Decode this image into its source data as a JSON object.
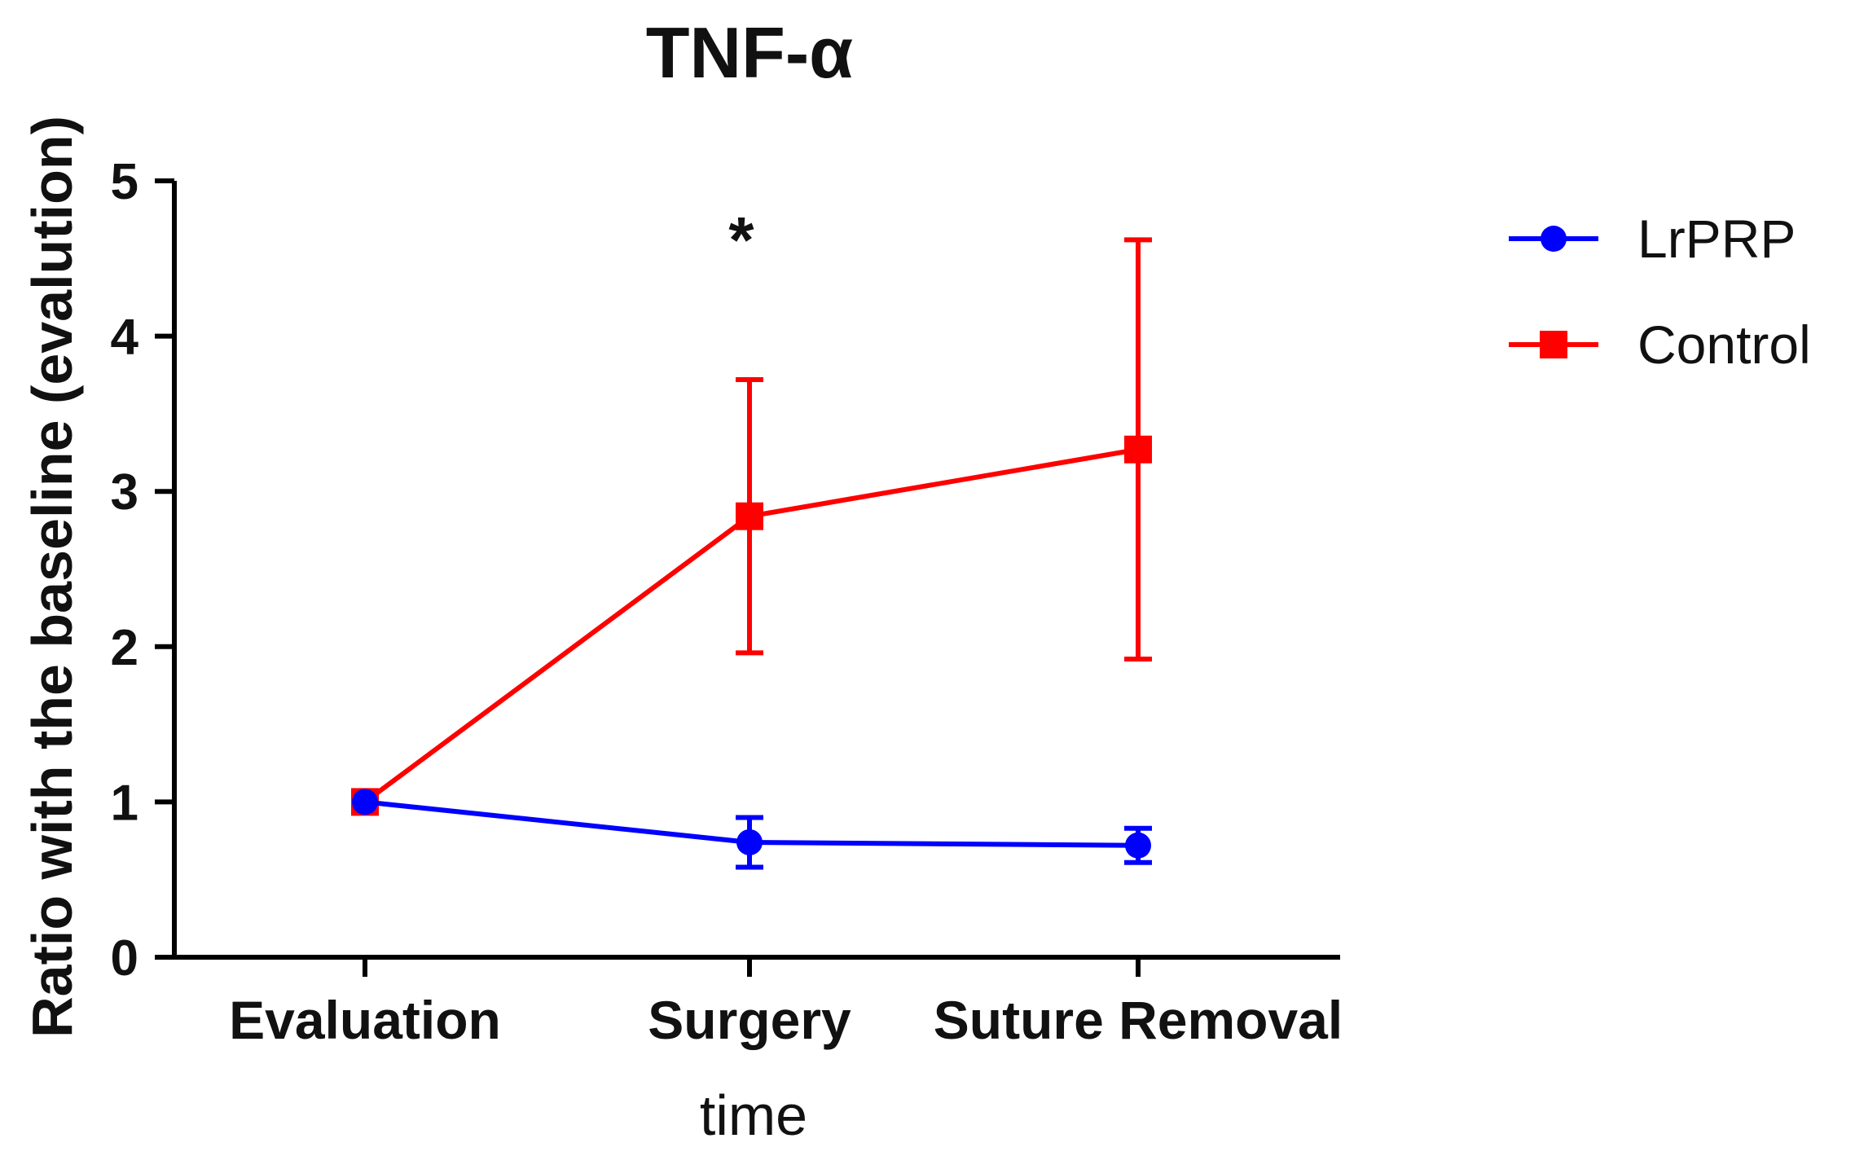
{
  "chart_data": {
    "type": "line",
    "title": "TNF-α",
    "xlabel": "time",
    "ylabel": "Ratio with the baseline (evalution)",
    "categories": [
      "Evaluation",
      "Surgery",
      "Suture Removal"
    ],
    "ylim": [
      0,
      5
    ],
    "yticks": [
      0,
      1,
      2,
      3,
      4,
      5
    ],
    "grid": false,
    "legend_position": "top-right",
    "series": [
      {
        "name": "LrPRP",
        "color": "#0000ff",
        "marker": "circle",
        "values": [
          1.0,
          0.74,
          0.72
        ],
        "error": [
          0.0,
          0.16,
          0.11
        ]
      },
      {
        "name": "Control",
        "color": "#ff0000",
        "marker": "square",
        "values": [
          1.0,
          2.84,
          3.27
        ],
        "error": [
          0.0,
          0.88,
          1.35
        ]
      }
    ],
    "annotations": [
      {
        "text": "*",
        "category": "Surgery"
      }
    ]
  }
}
